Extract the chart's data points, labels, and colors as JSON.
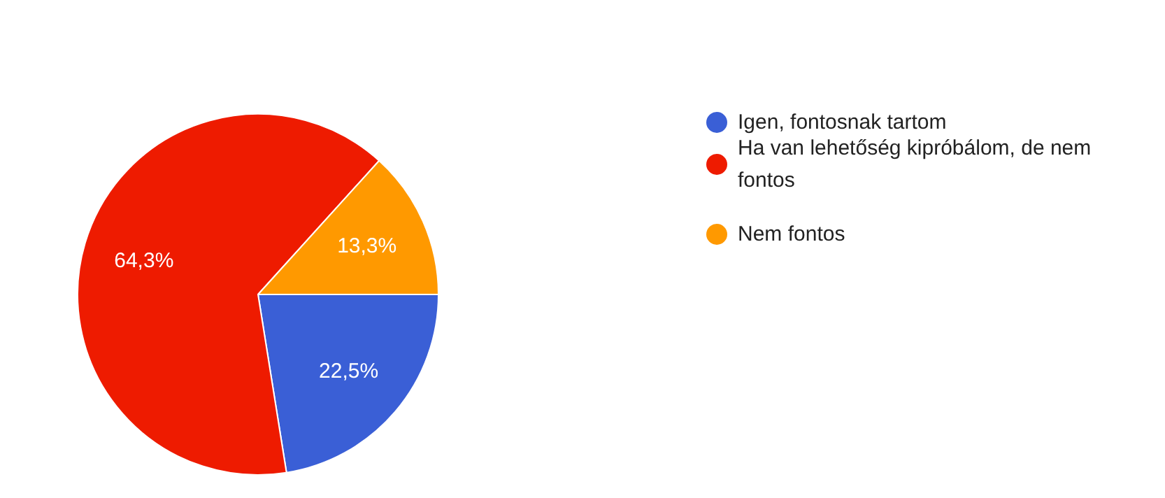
{
  "chart_data": {
    "type": "pie",
    "categories": [
      "Igen, fontosnak tartom",
      "Ha van lehetőség kipróbálom, de nem fontos",
      "Nem fontos"
    ],
    "values": [
      22.5,
      64.3,
      13.3
    ],
    "colors": [
      "#3a5fd6",
      "#ee1b00",
      "#ff9900"
    ],
    "value_labels": [
      "22,5%",
      "64,3%",
      "13,3%"
    ],
    "legend": "right"
  }
}
